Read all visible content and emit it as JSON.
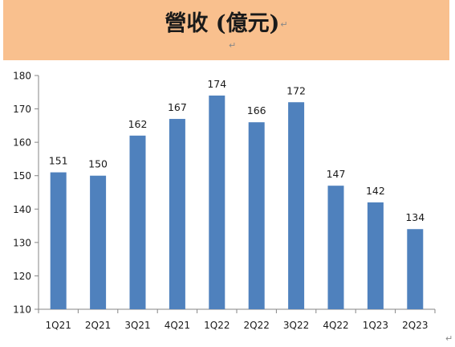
{
  "chart_data": {
    "type": "bar",
    "title": "營收 (億元)",
    "categories": [
      "1Q21",
      "2Q21",
      "3Q21",
      "4Q21",
      "1Q22",
      "2Q22",
      "3Q22",
      "4Q22",
      "1Q23",
      "2Q23"
    ],
    "values": [
      151,
      150,
      162,
      167,
      174,
      166,
      172,
      147,
      142,
      134
    ],
    "ylim": [
      110,
      180
    ],
    "yticks": [
      110,
      120,
      130,
      140,
      150,
      160,
      170,
      180
    ],
    "xlabel": "",
    "ylabel": "",
    "grid": false,
    "legend": "none",
    "bar_color": "#4f81bd",
    "title_background": "#f9c08e"
  },
  "marks": {
    "return": "↵"
  }
}
